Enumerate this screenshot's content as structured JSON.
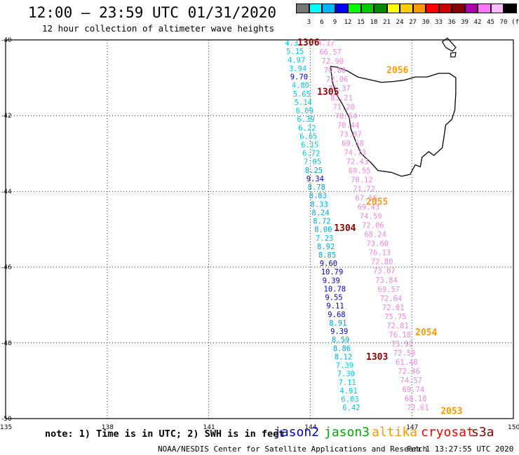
{
  "header": {
    "title": "12:00 – 23:59 UTC 01/31/2020",
    "subtitle": "12 hour collection of altimeter wave heights"
  },
  "colorbar": {
    "labels": [
      "3",
      "6",
      "9",
      "12",
      "15",
      "18",
      "21",
      "24",
      "27",
      "30",
      "33",
      "36",
      "39",
      "42",
      "45",
      "70"
    ],
    "unit": "(ft)",
    "colors": [
      "#777777",
      "#00ffff",
      "#00b7ff",
      "#0000ff",
      "#00ff00",
      "#00cc00",
      "#008800",
      "#ffff00",
      "#ffcc00",
      "#ff9900",
      "#ff0000",
      "#cc0000",
      "#880000",
      "#aa00aa",
      "#ff77ff",
      "#ffbbff",
      "#000000"
    ]
  },
  "axes": {
    "lat_labels": [
      "-40",
      "-42",
      "-44",
      "-46",
      "-48",
      "-50"
    ],
    "lon_labels": [
      "135",
      "138",
      "141",
      "144",
      "147",
      "150"
    ]
  },
  "passes": [
    {
      "label": "1306",
      "color": "#8b0000"
    },
    {
      "label": "2056",
      "color": "#ff9900"
    },
    {
      "label": "1305",
      "color": "#8b0000"
    },
    {
      "label": "2055",
      "color": "#ff9900"
    },
    {
      "label": "1304",
      "color": "#8b0000"
    },
    {
      "label": "2054",
      "color": "#ff9900"
    },
    {
      "label": "1303",
      "color": "#8b0000"
    },
    {
      "label": "2053",
      "color": "#ff9900"
    }
  ],
  "track_blue": [
    "4.31",
    "5.15",
    "4.97",
    "3.94",
    "9.70",
    "4.80",
    "5.65",
    "5.14",
    "6.09",
    "6.39",
    "6.22",
    "6.65",
    "6.15",
    "6.72",
    "7.05",
    "8.25",
    "9.34",
    "8.78",
    "8.83",
    "8.33",
    "8.24",
    "8.72",
    "8.00",
    "7.23",
    "8.92",
    "8.85",
    "9.60",
    "10.79",
    "9.39",
    "10.78",
    "9.55",
    "9.11",
    "9.68",
    "8.91",
    "9.39",
    "8.59",
    "8.86",
    "8.12",
    "7.39",
    "7.30",
    "7.11",
    "4.91",
    "6.03",
    "6.42"
  ],
  "track_pink": [
    "4.17",
    "66.57",
    "72.90",
    "70.80",
    "72.06",
    "71.37",
    "83.21",
    "71.20",
    "70.54",
    "70.44",
    "73.07",
    "69.58",
    "74.73",
    "72.43",
    "69.55",
    "70.12",
    "71.72",
    "67.56",
    "69.43",
    "74.59",
    "72.06",
    "68.24",
    "73.60",
    "76.13",
    "72.80",
    "73.07",
    "73.84",
    "69.57",
    "72.64",
    "72.81",
    "75.75",
    "72.81",
    "76.18",
    "73.92",
    "72.59",
    "61.48",
    "72.46",
    "74.57",
    "69.74",
    "68.10",
    "72.61"
  ],
  "satellites": [
    {
      "name": "jason2",
      "color": "#0000cc"
    },
    {
      "name": "jason3",
      "color": "#00aa00"
    },
    {
      "name": "altika",
      "color": "#ff9900"
    },
    {
      "name": "cryosat",
      "color": "#ff0000"
    },
    {
      "name": "s3a",
      "color": "#8b0000"
    }
  ],
  "footer": {
    "note": "note:  1) Time is in UTC; 2) SWH is in feet",
    "credit": "NOAA/NESDIS Center for Satellite Applications and Research",
    "timestamp": "Feb  1 13:27:55 UTC 2020"
  }
}
